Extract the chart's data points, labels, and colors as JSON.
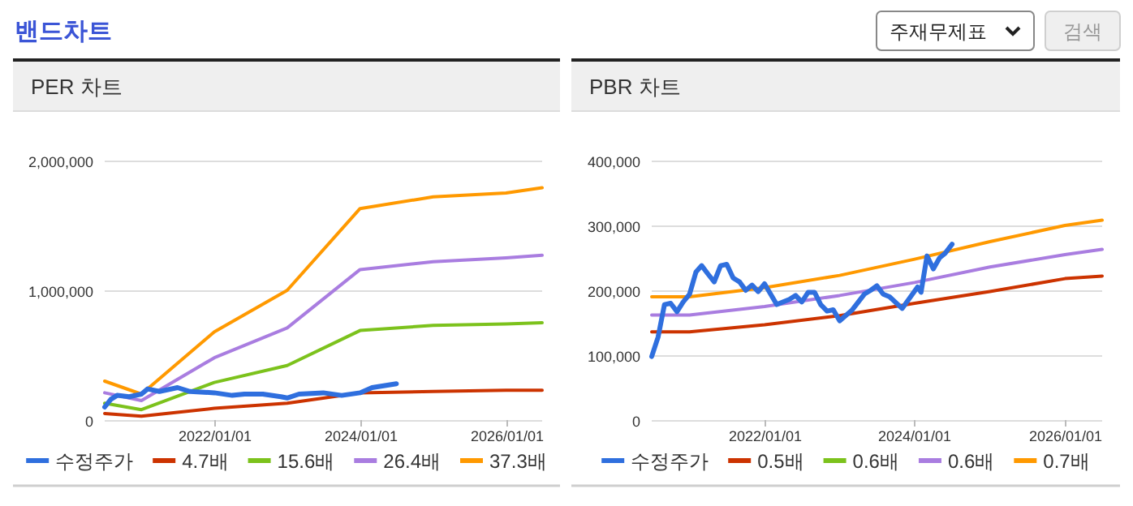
{
  "chart_data": [
    {
      "type": "other",
      "title": "밴드차트",
      "annotations": [
        "주재무제표",
        "검색"
      ]
    },
    {
      "type": "line",
      "title": "PER 차트",
      "x": [
        "2020-07-01",
        "2021-01-01",
        "2022-01-01",
        "2023-01-01",
        "2024-01-01",
        "2025-01-01",
        "2026-01-01",
        "2026-07-01"
      ],
      "xlim": [
        "2020-07-01",
        "2026-07-01"
      ],
      "xticks": [
        {
          "value": "2022-01-01",
          "label": "2022/01/01"
        },
        {
          "value": "2024-01-01",
          "label": "2024/01/01"
        },
        {
          "value": "2026-01-01",
          "label": "2026/01/01"
        }
      ],
      "ylim": [
        0,
        2000000
      ],
      "yticks": [
        {
          "value": 0,
          "label": "0"
        },
        {
          "value": 1000000,
          "label": "1,000,000"
        },
        {
          "value": 2000000,
          "label": "2,000,000"
        }
      ],
      "grid": "y",
      "legend": "bottom",
      "series": [
        {
          "name": "수정주가",
          "color": "#2f6fde",
          "x": [
            "2020-07-01",
            "2020-08-01",
            "2020-09-01",
            "2020-11-01",
            "2021-01-01",
            "2021-02-01",
            "2021-04-01",
            "2021-07-01",
            "2021-09-01",
            "2022-01-01",
            "2022-04-01",
            "2022-06-01",
            "2022-09-01",
            "2022-12-01",
            "2023-01-01",
            "2023-03-01",
            "2023-07-01",
            "2023-10-01",
            "2024-01-01",
            "2024-03-01",
            "2024-07-01"
          ],
          "values": [
            100000,
            160000,
            190000,
            180000,
            200000,
            240000,
            220000,
            250000,
            220000,
            210000,
            190000,
            200000,
            200000,
            180000,
            170000,
            200000,
            210000,
            190000,
            210000,
            250000,
            280000
          ]
        },
        {
          "name": "4.7배",
          "color": "#cc3300",
          "values": [
            50000,
            30000,
            90000,
            130000,
            210000,
            220000,
            230000,
            230000
          ]
        },
        {
          "name": "15.6배",
          "color": "#7cc21c",
          "values": [
            130000,
            80000,
            290000,
            420000,
            690000,
            730000,
            740000,
            750000
          ]
        },
        {
          "name": "26.4배",
          "color": "#a97de0",
          "values": [
            210000,
            150000,
            480000,
            710000,
            1160000,
            1220000,
            1250000,
            1270000
          ]
        },
        {
          "name": "37.3배",
          "color": "#ff9900",
          "values": [
            300000,
            200000,
            680000,
            1000000,
            1630000,
            1720000,
            1750000,
            1790000
          ]
        }
      ]
    },
    {
      "type": "line",
      "title": "PBR 차트",
      "x": [
        "2020-07-01",
        "2021-01-01",
        "2022-01-01",
        "2023-01-01",
        "2024-01-01",
        "2025-01-01",
        "2026-01-01",
        "2026-07-01"
      ],
      "xlim": [
        "2020-07-01",
        "2026-07-01"
      ],
      "xticks": [
        {
          "value": "2022-01-01",
          "label": "2022/01/01"
        },
        {
          "value": "2024-01-01",
          "label": "2024/01/01"
        },
        {
          "value": "2026-01-01",
          "label": "2026/01/01"
        }
      ],
      "ylim": [
        0,
        400000
      ],
      "yticks": [
        {
          "value": 0,
          "label": "0"
        },
        {
          "value": 100000,
          "label": "100,000"
        },
        {
          "value": 200000,
          "label": "200,000"
        },
        {
          "value": 300000,
          "label": "300,000"
        },
        {
          "value": 400000,
          "label": "400,000"
        }
      ],
      "grid": "y",
      "legend": "bottom",
      "series": [
        {
          "name": "수정주가",
          "color": "#2f6fde",
          "x": [
            "2020-07-01",
            "2020-08-01",
            "2020-09-01",
            "2020-10-01",
            "2020-11-01",
            "2020-12-01",
            "2021-01-01",
            "2021-02-01",
            "2021-03-01",
            "2021-04-01",
            "2021-05-01",
            "2021-06-01",
            "2021-07-01",
            "2021-08-01",
            "2021-09-01",
            "2021-10-01",
            "2021-11-01",
            "2021-12-01",
            "2022-01-01",
            "2022-03-01",
            "2022-05-01",
            "2022-06-01",
            "2022-07-01",
            "2022-08-01",
            "2022-09-01",
            "2022-10-01",
            "2022-11-01",
            "2022-12-01",
            "2023-01-01",
            "2023-03-01",
            "2023-05-01",
            "2023-06-01",
            "2023-07-01",
            "2023-08-01",
            "2023-09-01",
            "2023-11-01",
            "2024-01-15",
            "2024-02-01",
            "2024-03-01",
            "2024-04-01",
            "2024-05-01",
            "2024-05-28",
            "2024-07-01"
          ],
          "values": [
            98000,
            128000,
            178000,
            180000,
            167000,
            182000,
            194000,
            228000,
            238000,
            225000,
            213000,
            238000,
            240000,
            219000,
            213000,
            200000,
            208000,
            198000,
            210000,
            178000,
            186000,
            192000,
            182000,
            197000,
            197000,
            178000,
            168000,
            170000,
            153000,
            169000,
            194000,
            200000,
            207000,
            194000,
            190000,
            172000,
            205000,
            197000,
            253000,
            233000,
            250000,
            257000,
            271000
          ]
        },
        {
          "name": "0.5배",
          "color": "#cc3300",
          "values": [
            136000,
            136000,
            147000,
            161000,
            180000,
            198000,
            218000,
            222000
          ]
        },
        {
          "name": "0.6배",
          "color": "#7cc21c",
          "values": [
            null,
            null,
            null,
            null,
            null,
            null,
            null,
            null
          ]
        },
        {
          "name": "0.6배",
          "color": "#a97de0",
          "values": [
            162000,
            162000,
            175000,
            192000,
            212000,
            236000,
            255000,
            263000
          ]
        },
        {
          "name": "0.7배",
          "color": "#ff9900",
          "values": [
            190000,
            190000,
            204000,
            223000,
            248000,
            275000,
            300000,
            308000
          ]
        }
      ]
    }
  ]
}
